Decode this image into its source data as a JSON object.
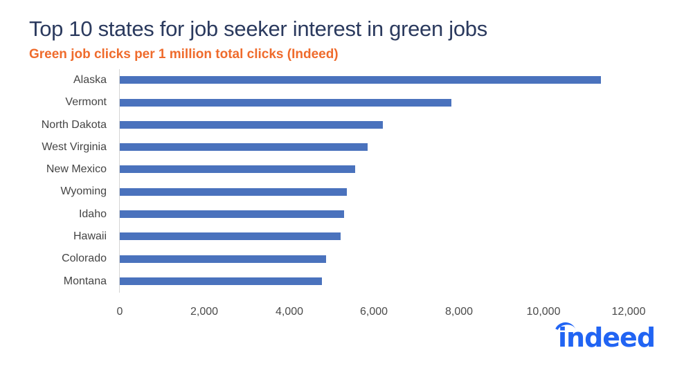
{
  "header": {
    "title": "Top 10 states for job seeker interest in green jobs",
    "subtitle": "Green job clicks per 1 million total clicks (Indeed)"
  },
  "logo": {
    "text": "indeed",
    "color": "#2164f3"
  },
  "colors": {
    "bar": "#4a72bd",
    "title": "#2b3a5e",
    "subtitle": "#ef6b2c"
  },
  "axis": {
    "ticks": [
      "0",
      "2,000",
      "4,000",
      "6,000",
      "8,000",
      "10,000",
      "12,000"
    ]
  },
  "chart_data": {
    "type": "bar",
    "orientation": "horizontal",
    "title": "Top 10 states for job seeker interest in green jobs",
    "subtitle": "Green job clicks per 1 million total clicks (Indeed)",
    "xlabel": "",
    "ylabel": "",
    "categories": [
      "Alaska",
      "Vermont",
      "North Dakota",
      "West Virginia",
      "New Mexico",
      "Wyoming",
      "Idaho",
      "Hawaii",
      "Colorado",
      "Montana"
    ],
    "values": [
      11350,
      7820,
      6200,
      5850,
      5550,
      5350,
      5290,
      5210,
      4870,
      4770
    ],
    "xlim": [
      0,
      12000
    ],
    "xticks": [
      0,
      2000,
      4000,
      6000,
      8000,
      10000,
      12000
    ],
    "grid": false,
    "legend": null,
    "source": "Indeed"
  }
}
